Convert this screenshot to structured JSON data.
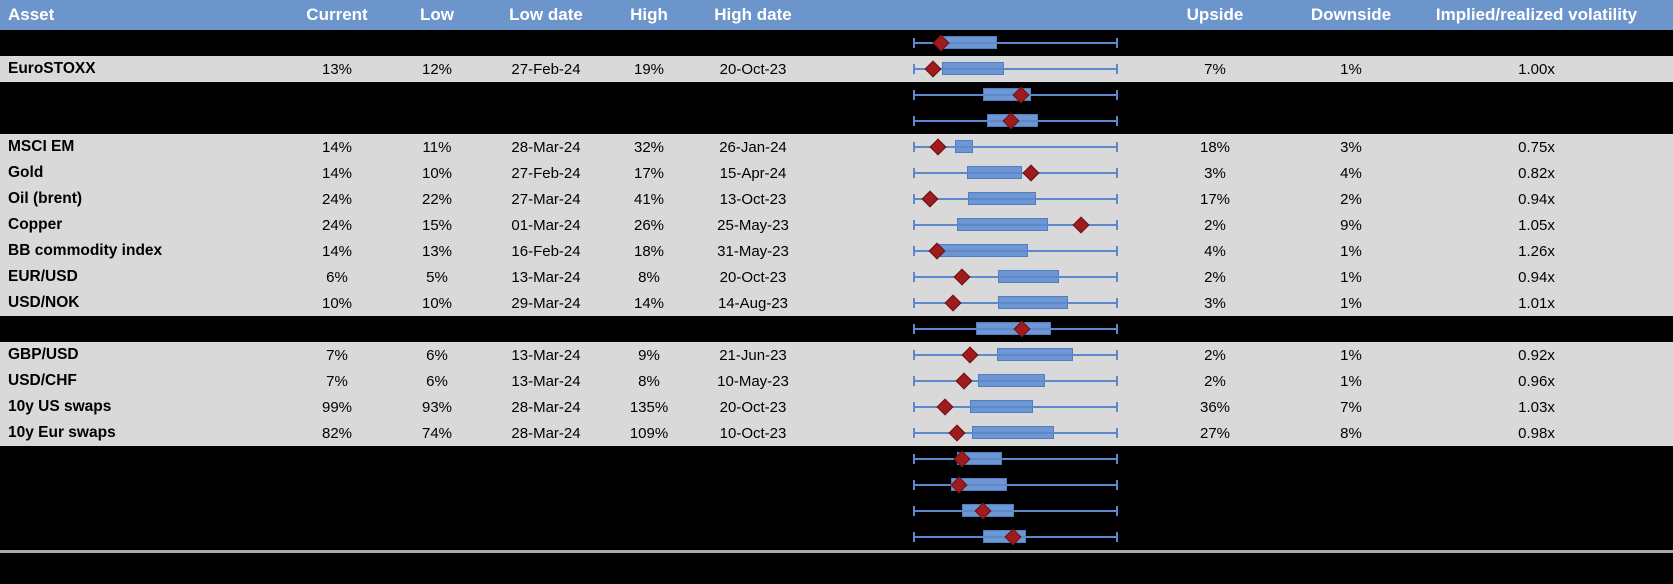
{
  "header": {
    "columns": [
      "Asset",
      "Current",
      "Low",
      "Low date",
      "High",
      "High date",
      "Upside",
      "Downside",
      "Implied/realized volatility"
    ]
  },
  "colors": {
    "header_bg": "#6c95cb",
    "header_text": "#ffffff",
    "data_row_bg": "#d9d9d9",
    "spacer_row_bg": "#000000",
    "whisker_blue": "#5d89cc",
    "box_fill_blue": "#6e96d3",
    "box_border_blue": "#4f7fc1",
    "marker_dark_red": "#9e1c1e",
    "divider_gray": "#a9a9a9",
    "text": "#000000"
  },
  "boxplot_scale_note": "box and marker positions are fractions 0-1 of the whisker span (no axis labels visible)",
  "rows": [
    {
      "type": "chart-only",
      "boxplot": {
        "box": [
          0.14,
          0.41
        ],
        "marker": 0.137
      }
    },
    {
      "type": "data",
      "asset": "EuroSTOXX",
      "current": "13%",
      "low": "12%",
      "low_date": "27-Feb-24",
      "high": "19%",
      "high_date": "20-Oct-23",
      "upside": "7%",
      "downside": "1%",
      "implied_realized": "1.00x",
      "boxplot": {
        "box": [
          0.14,
          0.445
        ],
        "marker": 0.096
      }
    },
    {
      "type": "chart-only",
      "boxplot": {
        "box": [
          0.34,
          0.575
        ],
        "marker": 0.525
      }
    },
    {
      "type": "chart-only",
      "boxplot": {
        "box": [
          0.36,
          0.61
        ],
        "marker": 0.48
      }
    },
    {
      "type": "data",
      "asset": "MSCI EM",
      "current": "14%",
      "low": "11%",
      "low_date": "28-Mar-24",
      "high": "32%",
      "high_date": "26-Jan-24",
      "upside": "18%",
      "downside": "3%",
      "implied_realized": "0.75x",
      "boxplot": {
        "box": [
          0.205,
          0.295
        ],
        "marker": 0.12
      }
    },
    {
      "type": "data",
      "asset": "Gold",
      "current": "14%",
      "low": "10%",
      "low_date": "27-Feb-24",
      "high": "17%",
      "high_date": "15-Apr-24",
      "upside": "3%",
      "downside": "4%",
      "implied_realized": "0.82x",
      "boxplot": {
        "box": [
          0.265,
          0.53
        ],
        "marker": 0.575
      }
    },
    {
      "type": "data",
      "asset": "Oil (brent)",
      "current": "24%",
      "low": "22%",
      "low_date": "27-Mar-24",
      "high": "41%",
      "high_date": "13-Oct-23",
      "upside": "17%",
      "downside": "2%",
      "implied_realized": "0.94x",
      "boxplot": {
        "box": [
          0.27,
          0.6
        ],
        "marker": 0.085
      }
    },
    {
      "type": "data",
      "asset": "Copper",
      "current": "24%",
      "low": "15%",
      "low_date": "01-Mar-24",
      "high": "26%",
      "high_date": "25-May-23",
      "upside": "2%",
      "downside": "9%",
      "implied_realized": "1.05x",
      "boxplot": {
        "box": [
          0.215,
          0.66
        ],
        "marker": 0.82
      }
    },
    {
      "type": "data",
      "asset": "BB commodity index",
      "current": "14%",
      "low": "13%",
      "low_date": "16-Feb-24",
      "high": "18%",
      "high_date": "31-May-23",
      "upside": "4%",
      "downside": "1%",
      "implied_realized": "1.26x",
      "boxplot": {
        "box": [
          0.107,
          0.56
        ],
        "marker": 0.115
      }
    },
    {
      "type": "data",
      "asset": "EUR/USD",
      "current": "6%",
      "low": "5%",
      "low_date": "13-Mar-24",
      "high": "8%",
      "high_date": "20-Oct-23",
      "upside": "2%",
      "downside": "1%",
      "implied_realized": "0.94x",
      "boxplot": {
        "box": [
          0.415,
          0.71
        ],
        "marker": 0.24
      }
    },
    {
      "type": "data",
      "asset": "USD/NOK",
      "current": "10%",
      "low": "10%",
      "low_date": "29-Mar-24",
      "high": "14%",
      "high_date": "14-Aug-23",
      "upside": "3%",
      "downside": "1%",
      "implied_realized": "1.01x",
      "boxplot": {
        "box": [
          0.415,
          0.755
        ],
        "marker": 0.195
      }
    },
    {
      "type": "chart-only",
      "boxplot": {
        "box": [
          0.305,
          0.675
        ],
        "marker": 0.53
      }
    },
    {
      "type": "data",
      "asset": "GBP/USD",
      "current": "7%",
      "low": "6%",
      "low_date": "13-Mar-24",
      "high": "9%",
      "high_date": "21-Jun-23",
      "upside": "2%",
      "downside": "1%",
      "implied_realized": "0.92x",
      "boxplot": {
        "box": [
          0.41,
          0.78
        ],
        "marker": 0.28
      }
    },
    {
      "type": "data",
      "asset": "USD/CHF",
      "current": "7%",
      "low": "6%",
      "low_date": "13-Mar-24",
      "high": "8%",
      "high_date": "10-May-23",
      "upside": "2%",
      "downside": "1%",
      "implied_realized": "0.96x",
      "boxplot": {
        "box": [
          0.315,
          0.645
        ],
        "marker": 0.25
      }
    },
    {
      "type": "data",
      "asset": "10y US swaps",
      "current": "99%",
      "low": "93%",
      "low_date": "28-Mar-24",
      "high": "135%",
      "high_date": "20-Oct-23",
      "upside": "36%",
      "downside": "7%",
      "implied_realized": "1.03x",
      "boxplot": {
        "box": [
          0.28,
          0.585
        ],
        "marker": 0.155
      }
    },
    {
      "type": "data",
      "asset": "10y Eur swaps",
      "current": "82%",
      "low": "74%",
      "low_date": "28-Mar-24",
      "high": "109%",
      "high_date": "10-Oct-23",
      "upside": "27%",
      "downside": "8%",
      "implied_realized": "0.98x",
      "boxplot": {
        "box": [
          0.29,
          0.69
        ],
        "marker": 0.215
      }
    },
    {
      "type": "chart-only",
      "boxplot": {
        "box": [
          0.215,
          0.435
        ],
        "marker": 0.24
      }
    },
    {
      "type": "chart-only",
      "boxplot": {
        "box": [
          0.185,
          0.46
        ],
        "marker": 0.225
      }
    },
    {
      "type": "chart-only",
      "boxplot": {
        "box": [
          0.24,
          0.495
        ],
        "marker": 0.34
      }
    },
    {
      "type": "chart-only",
      "boxplot": {
        "box": [
          0.34,
          0.55
        ],
        "marker": 0.49
      }
    }
  ]
}
